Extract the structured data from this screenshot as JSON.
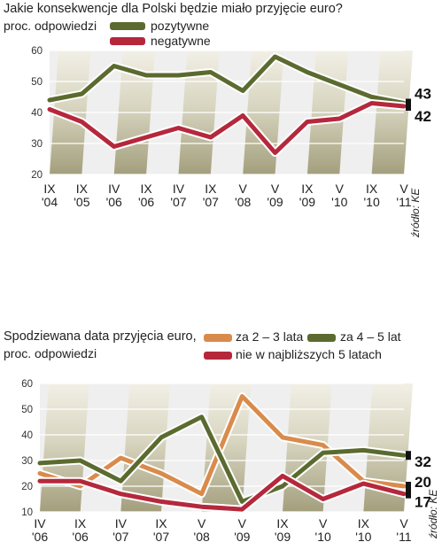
{
  "chart_data": [
    {
      "type": "line",
      "title": "Jakie konsekwencje dla Polski będzie miało przyjęcie euro?",
      "subtitle": "proc. odpowiedzi",
      "source": "źródło: KE",
      "categories": [
        {
          "top": "IX",
          "bottom": "'04"
        },
        {
          "top": "IX",
          "bottom": "'05"
        },
        {
          "top": "IV",
          "bottom": "'06"
        },
        {
          "top": "IX",
          "bottom": "'06"
        },
        {
          "top": "IV",
          "bottom": "'07"
        },
        {
          "top": "IX",
          "bottom": "'07"
        },
        {
          "top": "V",
          "bottom": "'08"
        },
        {
          "top": "V",
          "bottom": "'09"
        },
        {
          "top": "IX",
          "bottom": "'09"
        },
        {
          "top": "V",
          "bottom": "'10"
        },
        {
          "top": "IX",
          "bottom": "'10"
        },
        {
          "top": "V",
          "bottom": "'11"
        }
      ],
      "ylim": [
        20,
        60
      ],
      "yticks": [
        "20",
        "30",
        "40",
        "50",
        "60"
      ],
      "legend_position": "top",
      "series": [
        {
          "name": "pozytywne",
          "color": "#5b6b2f",
          "values": [
            44,
            46,
            55,
            52,
            52,
            53,
            47,
            58,
            53,
            49,
            45,
            43
          ],
          "end_label": "43"
        },
        {
          "name": "negatywne",
          "color": "#b5283c",
          "values": [
            41,
            37,
            29,
            32,
            35,
            32,
            39,
            27,
            37,
            38,
            43,
            42
          ],
          "end_label": "42"
        }
      ]
    },
    {
      "type": "line",
      "title": "Spodziewana data przyjęcia euro,",
      "subtitle": "proc. odpowiedzi",
      "source": "źródło: KE",
      "categories": [
        {
          "top": "IV",
          "bottom": "'06"
        },
        {
          "top": "IX",
          "bottom": "'06"
        },
        {
          "top": "IV",
          "bottom": "'07"
        },
        {
          "top": "IX",
          "bottom": "'07"
        },
        {
          "top": "V",
          "bottom": "'08"
        },
        {
          "top": "V",
          "bottom": "'09"
        },
        {
          "top": "IX",
          "bottom": "'09"
        },
        {
          "top": "V",
          "bottom": "'10"
        },
        {
          "top": "IX",
          "bottom": "'10"
        },
        {
          "top": "V",
          "bottom": "'11"
        }
      ],
      "ylim": [
        10,
        60
      ],
      "yticks": [
        "10",
        "20",
        "30",
        "40",
        "50",
        "60"
      ],
      "legend_position": "top",
      "series": [
        {
          "name": "za 2 – 3 lata",
          "color": "#d98b4c",
          "values": [
            25,
            20,
            31,
            25,
            17,
            55,
            39,
            36,
            22,
            20
          ],
          "end_label": "20"
        },
        {
          "name": "za 4 – 5 lat",
          "color": "#5b6b2f",
          "values": [
            29,
            30,
            22,
            39,
            47,
            14,
            20,
            33,
            34,
            32
          ],
          "end_label": "32"
        },
        {
          "name": "nie w najbliższych 5 latach",
          "color": "#b5283c",
          "values": [
            22,
            22,
            17,
            14,
            12,
            11,
            24,
            15,
            21,
            17
          ],
          "end_label": "17"
        }
      ]
    }
  ]
}
